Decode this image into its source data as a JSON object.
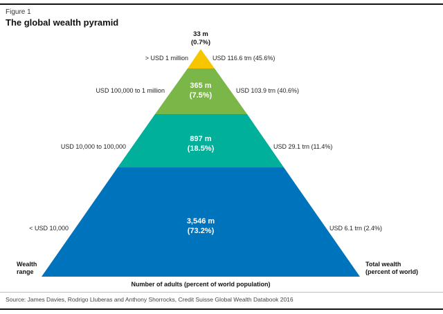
{
  "figure": {
    "label": "Figure 1",
    "title": "The global wealth pyramid"
  },
  "tiers": [
    {
      "count": "33 m",
      "share": "(0.7%)",
      "wealth_range": "> USD 1 million",
      "total_wealth": "USD 116.6 trn (45.6%)",
      "color": "#f7c600"
    },
    {
      "count": "365 m",
      "share": "(7.5%)",
      "wealth_range": "USD 100,000 to 1 million",
      "total_wealth": "USD 103.9 trn (40.6%)",
      "color": "#7ab648"
    },
    {
      "count": "897 m",
      "share": "(18.5%)",
      "wealth_range": "USD 10,000 to 100,000",
      "total_wealth": "USD 29.1 trn (11.4%)",
      "color": "#00b09b"
    },
    {
      "count": "3,546 m",
      "share": "(73.2%)",
      "wealth_range": "< USD 10,000",
      "total_wealth": "USD 6.1 trn (2.4%)",
      "color": "#0073bd"
    }
  ],
  "axis": {
    "left_line1": "Wealth",
    "left_line2": "range",
    "right_line1": "Total wealth",
    "right_line2": "(percent of world)",
    "bottom": "Number of adults (percent of world population)"
  },
  "source": "Source: James Davies, Rodrigo Lluberas and Anthony Shorrocks, Credit Suisse Global Wealth Databook 2016"
}
